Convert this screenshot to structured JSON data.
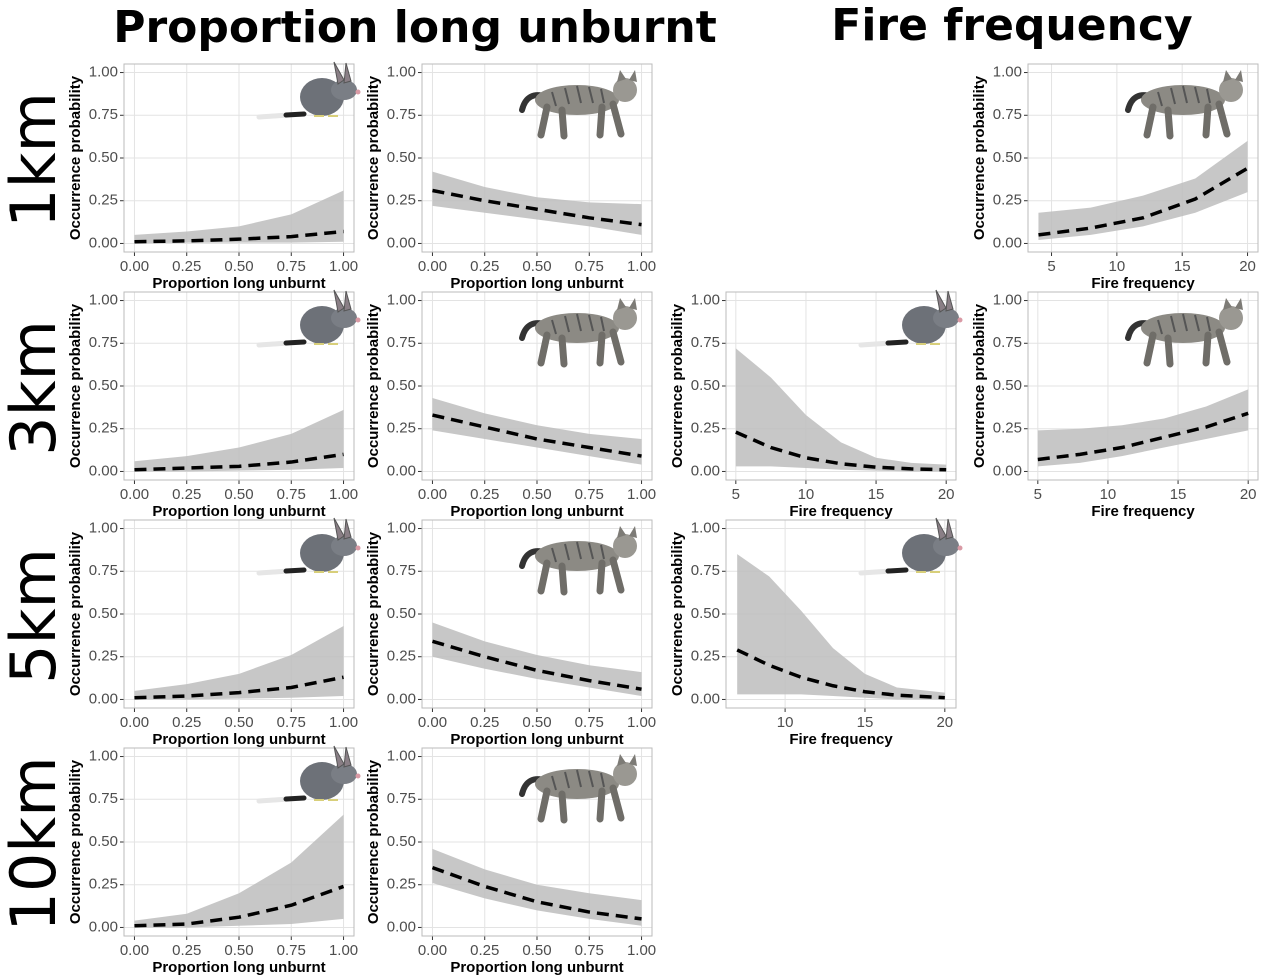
{
  "column_titles": [
    "Proportion long unburnt",
    "Fire frequency"
  ],
  "row_labels": [
    "1km",
    "3km",
    "5km",
    "10km"
  ],
  "chart_data": [
    {
      "type": "line",
      "xlabel": "Proportion long unburnt",
      "ylabel": "Occurrence probability",
      "grid": true,
      "x": [
        0,
        0.25,
        0.5,
        0.75,
        1
      ],
      "values": [
        0.01,
        0.015,
        0.025,
        0.04,
        0.07
      ],
      "lower": [
        0,
        0.005,
        0.005,
        0.005,
        0.01
      ],
      "upper": [
        0.05,
        0.07,
        0.1,
        0.17,
        0.31
      ],
      "xlim": [
        -0.05,
        1.05
      ],
      "ylim": [
        -0.05,
        1.05
      ],
      "xticks": [
        {
          "value": 0,
          "label": "0.00"
        },
        {
          "value": 0.25,
          "label": "0.25"
        },
        {
          "value": 0.5,
          "label": "0.50"
        },
        {
          "value": 0.75,
          "label": "0.75"
        },
        {
          "value": 1,
          "label": "1.00"
        }
      ],
      "yticks": [
        {
          "value": 0,
          "label": "0.00"
        },
        {
          "value": 0.25,
          "label": "0.25"
        },
        {
          "value": 0.5,
          "label": "0.50"
        },
        {
          "value": 0.75,
          "label": "0.75"
        },
        {
          "value": 1,
          "label": "1.00"
        }
      ]
    },
    {
      "type": "line",
      "xlabel": "Proportion long unburnt",
      "ylabel": "Occurrence probability",
      "grid": true,
      "x": [
        0,
        0.25,
        0.5,
        0.75,
        1
      ],
      "values": [
        0.31,
        0.25,
        0.2,
        0.15,
        0.11
      ],
      "lower": [
        0.22,
        0.18,
        0.14,
        0.1,
        0.05
      ],
      "upper": [
        0.42,
        0.33,
        0.27,
        0.24,
        0.23
      ],
      "xlim": [
        -0.05,
        1.05
      ],
      "ylim": [
        -0.05,
        1.05
      ],
      "xticks": [
        {
          "value": 0,
          "label": "0.00"
        },
        {
          "value": 0.25,
          "label": "0.25"
        },
        {
          "value": 0.5,
          "label": "0.50"
        },
        {
          "value": 0.75,
          "label": "0.75"
        },
        {
          "value": 1,
          "label": "1.00"
        }
      ],
      "yticks": [
        {
          "value": 0,
          "label": "0.00"
        },
        {
          "value": 0.25,
          "label": "0.25"
        },
        {
          "value": 0.5,
          "label": "0.50"
        },
        {
          "value": 0.75,
          "label": "0.75"
        },
        {
          "value": 1,
          "label": "1.00"
        }
      ]
    },
    {
      "type": "line",
      "xlabel": "Fire frequency",
      "ylabel": "Occurrence probability",
      "grid": true,
      "x": [
        4,
        8,
        12,
        16,
        20
      ],
      "values": [
        0.05,
        0.09,
        0.15,
        0.26,
        0.44
      ],
      "lower": [
        0.02,
        0.05,
        0.1,
        0.18,
        0.3
      ],
      "upper": [
        0.18,
        0.21,
        0.28,
        0.38,
        0.6
      ],
      "xlim": [
        3.2,
        20.8
      ],
      "ylim": [
        -0.05,
        1.05
      ],
      "xticks": [
        5,
        10,
        15,
        20
      ],
      "yticks": [
        {
          "value": 0,
          "label": "0.00"
        },
        {
          "value": 0.25,
          "label": "0.25"
        },
        {
          "value": 0.5,
          "label": "0.50"
        },
        {
          "value": 0.75,
          "label": "0.75"
        },
        {
          "value": 1,
          "label": "1.00"
        }
      ]
    },
    {
      "type": "line",
      "xlabel": "Proportion long unburnt",
      "ylabel": "Occurrence probability",
      "grid": true,
      "x": [
        0,
        0.25,
        0.5,
        0.75,
        1
      ],
      "values": [
        0.01,
        0.02,
        0.03,
        0.055,
        0.1
      ],
      "lower": [
        0,
        0,
        0.005,
        0.01,
        0.02
      ],
      "upper": [
        0.06,
        0.09,
        0.14,
        0.22,
        0.36
      ],
      "xlim": [
        -0.05,
        1.05
      ],
      "ylim": [
        -0.05,
        1.05
      ],
      "xticks": [
        {
          "value": 0,
          "label": "0.00"
        },
        {
          "value": 0.25,
          "label": "0.25"
        },
        {
          "value": 0.5,
          "label": "0.50"
        },
        {
          "value": 0.75,
          "label": "0.75"
        },
        {
          "value": 1,
          "label": "1.00"
        }
      ],
      "yticks": [
        {
          "value": 0,
          "label": "0.00"
        },
        {
          "value": 0.25,
          "label": "0.25"
        },
        {
          "value": 0.5,
          "label": "0.50"
        },
        {
          "value": 0.75,
          "label": "0.75"
        },
        {
          "value": 1,
          "label": "1.00"
        }
      ]
    },
    {
      "type": "line",
      "xlabel": "Proportion long unburnt",
      "ylabel": "Occurrence probability",
      "grid": true,
      "x": [
        0,
        0.25,
        0.5,
        0.75,
        1
      ],
      "values": [
        0.33,
        0.26,
        0.19,
        0.14,
        0.09
      ],
      "lower": [
        0.24,
        0.19,
        0.14,
        0.09,
        0.04
      ],
      "upper": [
        0.43,
        0.34,
        0.27,
        0.22,
        0.19
      ],
      "xlim": [
        -0.05,
        1.05
      ],
      "ylim": [
        -0.05,
        1.05
      ],
      "xticks": [
        {
          "value": 0,
          "label": "0.00"
        },
        {
          "value": 0.25,
          "label": "0.25"
        },
        {
          "value": 0.5,
          "label": "0.50"
        },
        {
          "value": 0.75,
          "label": "0.75"
        },
        {
          "value": 1,
          "label": "1.00"
        }
      ],
      "yticks": [
        {
          "value": 0,
          "label": "0.00"
        },
        {
          "value": 0.25,
          "label": "0.25"
        },
        {
          "value": 0.5,
          "label": "0.50"
        },
        {
          "value": 0.75,
          "label": "0.75"
        },
        {
          "value": 1,
          "label": "1.00"
        }
      ]
    },
    {
      "type": "line",
      "xlabel": "Fire frequency",
      "ylabel": "Occurrence probability",
      "grid": true,
      "x": [
        5,
        7.5,
        10,
        12.5,
        15,
        17.5,
        20
      ],
      "values": [
        0.23,
        0.14,
        0.08,
        0.045,
        0.025,
        0.015,
        0.01
      ],
      "lower": [
        0.03,
        0.03,
        0.02,
        0.01,
        0.005,
        0,
        0
      ],
      "upper": [
        0.72,
        0.55,
        0.33,
        0.17,
        0.08,
        0.05,
        0.04
      ],
      "xlim": [
        4.3,
        20.7
      ],
      "ylim": [
        -0.05,
        1.05
      ],
      "xticks": [
        5,
        10,
        15,
        20
      ],
      "yticks": [
        {
          "value": 0,
          "label": "0.00"
        },
        {
          "value": 0.25,
          "label": "0.25"
        },
        {
          "value": 0.5,
          "label": "0.50"
        },
        {
          "value": 0.75,
          "label": "0.75"
        },
        {
          "value": 1,
          "label": "1.00"
        }
      ]
    },
    {
      "type": "line",
      "xlabel": "Fire frequency",
      "ylabel": "Occurrence probability",
      "grid": true,
      "x": [
        5,
        8,
        11,
        14,
        17,
        20
      ],
      "values": [
        0.07,
        0.1,
        0.14,
        0.2,
        0.26,
        0.34
      ],
      "lower": [
        0.03,
        0.05,
        0.09,
        0.14,
        0.19,
        0.24
      ],
      "upper": [
        0.24,
        0.25,
        0.27,
        0.31,
        0.38,
        0.48
      ],
      "xlim": [
        4.3,
        20.7
      ],
      "ylim": [
        -0.05,
        1.05
      ],
      "xticks": [
        5,
        10,
        15,
        20
      ],
      "yticks": [
        {
          "value": 0,
          "label": "0.00"
        },
        {
          "value": 0.25,
          "label": "0.25"
        },
        {
          "value": 0.5,
          "label": "0.50"
        },
        {
          "value": 0.75,
          "label": "0.75"
        },
        {
          "value": 1,
          "label": "1.00"
        }
      ]
    },
    {
      "type": "line",
      "xlabel": "Proportion long unburnt",
      "ylabel": "Occurrence probability",
      "grid": true,
      "x": [
        0,
        0.25,
        0.5,
        0.75,
        1
      ],
      "values": [
        0.01,
        0.02,
        0.04,
        0.07,
        0.13
      ],
      "lower": [
        0,
        0,
        0.005,
        0.01,
        0.02
      ],
      "upper": [
        0.05,
        0.09,
        0.15,
        0.26,
        0.43
      ],
      "xlim": [
        -0.05,
        1.05
      ],
      "ylim": [
        -0.05,
        1.05
      ],
      "xticks": [
        {
          "value": 0,
          "label": "0.00"
        },
        {
          "value": 0.25,
          "label": "0.25"
        },
        {
          "value": 0.5,
          "label": "0.50"
        },
        {
          "value": 0.75,
          "label": "0.75"
        },
        {
          "value": 1,
          "label": "1.00"
        }
      ],
      "yticks": [
        {
          "value": 0,
          "label": "0.00"
        },
        {
          "value": 0.25,
          "label": "0.25"
        },
        {
          "value": 0.5,
          "label": "0.50"
        },
        {
          "value": 0.75,
          "label": "0.75"
        },
        {
          "value": 1,
          "label": "1.00"
        }
      ]
    },
    {
      "type": "line",
      "xlabel": "Proportion long unburnt",
      "ylabel": "Occurrence probability",
      "grid": true,
      "x": [
        0,
        0.25,
        0.5,
        0.75,
        1
      ],
      "values": [
        0.34,
        0.25,
        0.17,
        0.11,
        0.06
      ],
      "lower": [
        0.25,
        0.18,
        0.12,
        0.07,
        0.02
      ],
      "upper": [
        0.45,
        0.34,
        0.26,
        0.2,
        0.16
      ],
      "xlim": [
        -0.05,
        1.05
      ],
      "ylim": [
        -0.05,
        1.05
      ],
      "xticks": [
        {
          "value": 0,
          "label": "0.00"
        },
        {
          "value": 0.25,
          "label": "0.25"
        },
        {
          "value": 0.5,
          "label": "0.50"
        },
        {
          "value": 0.75,
          "label": "0.75"
        },
        {
          "value": 1,
          "label": "1.00"
        }
      ],
      "yticks": [
        {
          "value": 0,
          "label": "0.00"
        },
        {
          "value": 0.25,
          "label": "0.25"
        },
        {
          "value": 0.5,
          "label": "0.50"
        },
        {
          "value": 0.75,
          "label": "0.75"
        },
        {
          "value": 1,
          "label": "1.00"
        }
      ]
    },
    {
      "type": "line",
      "xlabel": "Fire frequency",
      "ylabel": "Occurrence probability",
      "grid": true,
      "x": [
        7,
        9,
        11,
        13,
        15,
        17,
        20
      ],
      "values": [
        0.29,
        0.2,
        0.13,
        0.08,
        0.045,
        0.025,
        0.01
      ],
      "lower": [
        0.03,
        0.03,
        0.03,
        0.02,
        0.01,
        0,
        0
      ],
      "upper": [
        0.85,
        0.72,
        0.52,
        0.3,
        0.15,
        0.07,
        0.04
      ],
      "xlim": [
        6.3,
        20.7
      ],
      "ylim": [
        -0.05,
        1.05
      ],
      "xticks": [
        10,
        15,
        20
      ],
      "yticks": [
        {
          "value": 0,
          "label": "0.00"
        },
        {
          "value": 0.25,
          "label": "0.25"
        },
        {
          "value": 0.5,
          "label": "0.50"
        },
        {
          "value": 0.75,
          "label": "0.75"
        },
        {
          "value": 1,
          "label": "1.00"
        }
      ]
    },
    {
      "type": "line",
      "xlabel": "Proportion long unburnt",
      "ylabel": "Occurrence probability",
      "grid": true,
      "x": [
        0,
        0.25,
        0.5,
        0.75,
        1
      ],
      "values": [
        0.01,
        0.02,
        0.06,
        0.13,
        0.24
      ],
      "lower": [
        0,
        0,
        0.01,
        0.02,
        0.05
      ],
      "upper": [
        0.04,
        0.08,
        0.2,
        0.38,
        0.66
      ],
      "xlim": [
        -0.05,
        1.05
      ],
      "ylim": [
        -0.05,
        1.05
      ],
      "xticks": [
        {
          "value": 0,
          "label": "0.00"
        },
        {
          "value": 0.25,
          "label": "0.25"
        },
        {
          "value": 0.5,
          "label": "0.50"
        },
        {
          "value": 0.75,
          "label": "0.75"
        },
        {
          "value": 1,
          "label": "1.00"
        }
      ],
      "yticks": [
        {
          "value": 0,
          "label": "0.00"
        },
        {
          "value": 0.25,
          "label": "0.25"
        },
        {
          "value": 0.5,
          "label": "0.50"
        },
        {
          "value": 0.75,
          "label": "0.75"
        },
        {
          "value": 1,
          "label": "1.00"
        }
      ]
    },
    {
      "type": "line",
      "xlabel": "Proportion long unburnt",
      "ylabel": "Occurrence probability",
      "grid": true,
      "x": [
        0,
        0.25,
        0.5,
        0.75,
        1
      ],
      "values": [
        0.35,
        0.24,
        0.15,
        0.09,
        0.05
      ],
      "lower": [
        0.26,
        0.17,
        0.1,
        0.05,
        0.01
      ],
      "upper": [
        0.46,
        0.34,
        0.25,
        0.2,
        0.16
      ],
      "xlim": [
        -0.05,
        1.05
      ],
      "ylim": [
        -0.05,
        1.05
      ],
      "xticks": [
        {
          "value": 0,
          "label": "0.00"
        },
        {
          "value": 0.25,
          "label": "0.25"
        },
        {
          "value": 0.5,
          "label": "0.50"
        },
        {
          "value": 0.75,
          "label": "0.75"
        },
        {
          "value": 1,
          "label": "1.00"
        }
      ],
      "yticks": [
        {
          "value": 0,
          "label": "0.00"
        },
        {
          "value": 0.25,
          "label": "0.25"
        },
        {
          "value": 0.5,
          "label": "0.50"
        },
        {
          "value": 0.75,
          "label": "0.75"
        },
        {
          "value": 1,
          "label": "1.00"
        }
      ]
    }
  ]
}
